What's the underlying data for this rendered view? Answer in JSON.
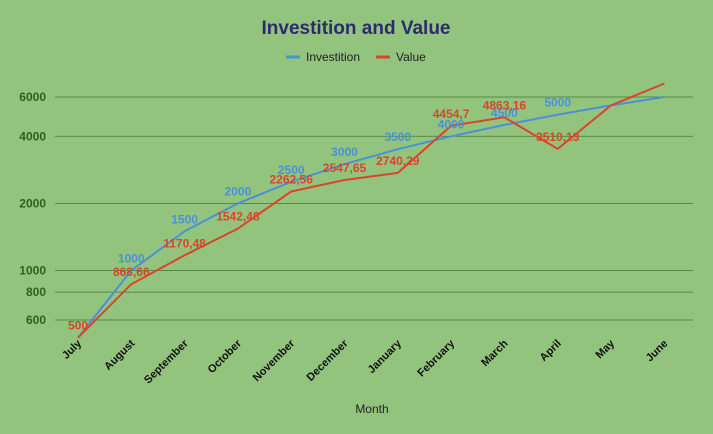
{
  "chart_data": {
    "type": "line",
    "title": "Investition and Value",
    "xlabel": "Month",
    "ylabel": "",
    "scale": "log",
    "ylim": [
      500,
      7000
    ],
    "yticks": [
      600,
      800,
      1000,
      2000,
      4000,
      6000
    ],
    "grid": true,
    "legend_position": "top",
    "categories": [
      "July",
      "August",
      "September",
      "October",
      "November",
      "December",
      "January",
      "February",
      "March",
      "April",
      "May",
      "June"
    ],
    "series": [
      {
        "name": "Investition",
        "color": "#4a90d9",
        "values": [
          500,
          1000,
          1500,
          2000,
          2500,
          3000,
          3500,
          4000,
          4500,
          5000,
          5500,
          6000
        ],
        "labels": [
          "",
          "1000",
          "1500",
          "2000",
          "2500",
          "3000",
          "3500",
          "4000",
          "4500",
          "5000",
          "",
          ""
        ]
      },
      {
        "name": "Value",
        "color": "#d9452b",
        "values": [
          500,
          868.66,
          1170.48,
          1542.48,
          2262.56,
          2547.65,
          2740.29,
          4454.7,
          4863.16,
          3510.13,
          5500,
          6900
        ],
        "labels": [
          "500",
          "868,66",
          "1170,48",
          "1542,48",
          "2262,56",
          "2547,65",
          "2740,29",
          "4454,7",
          "4863,16",
          "3510,13",
          "",
          ""
        ]
      }
    ]
  }
}
